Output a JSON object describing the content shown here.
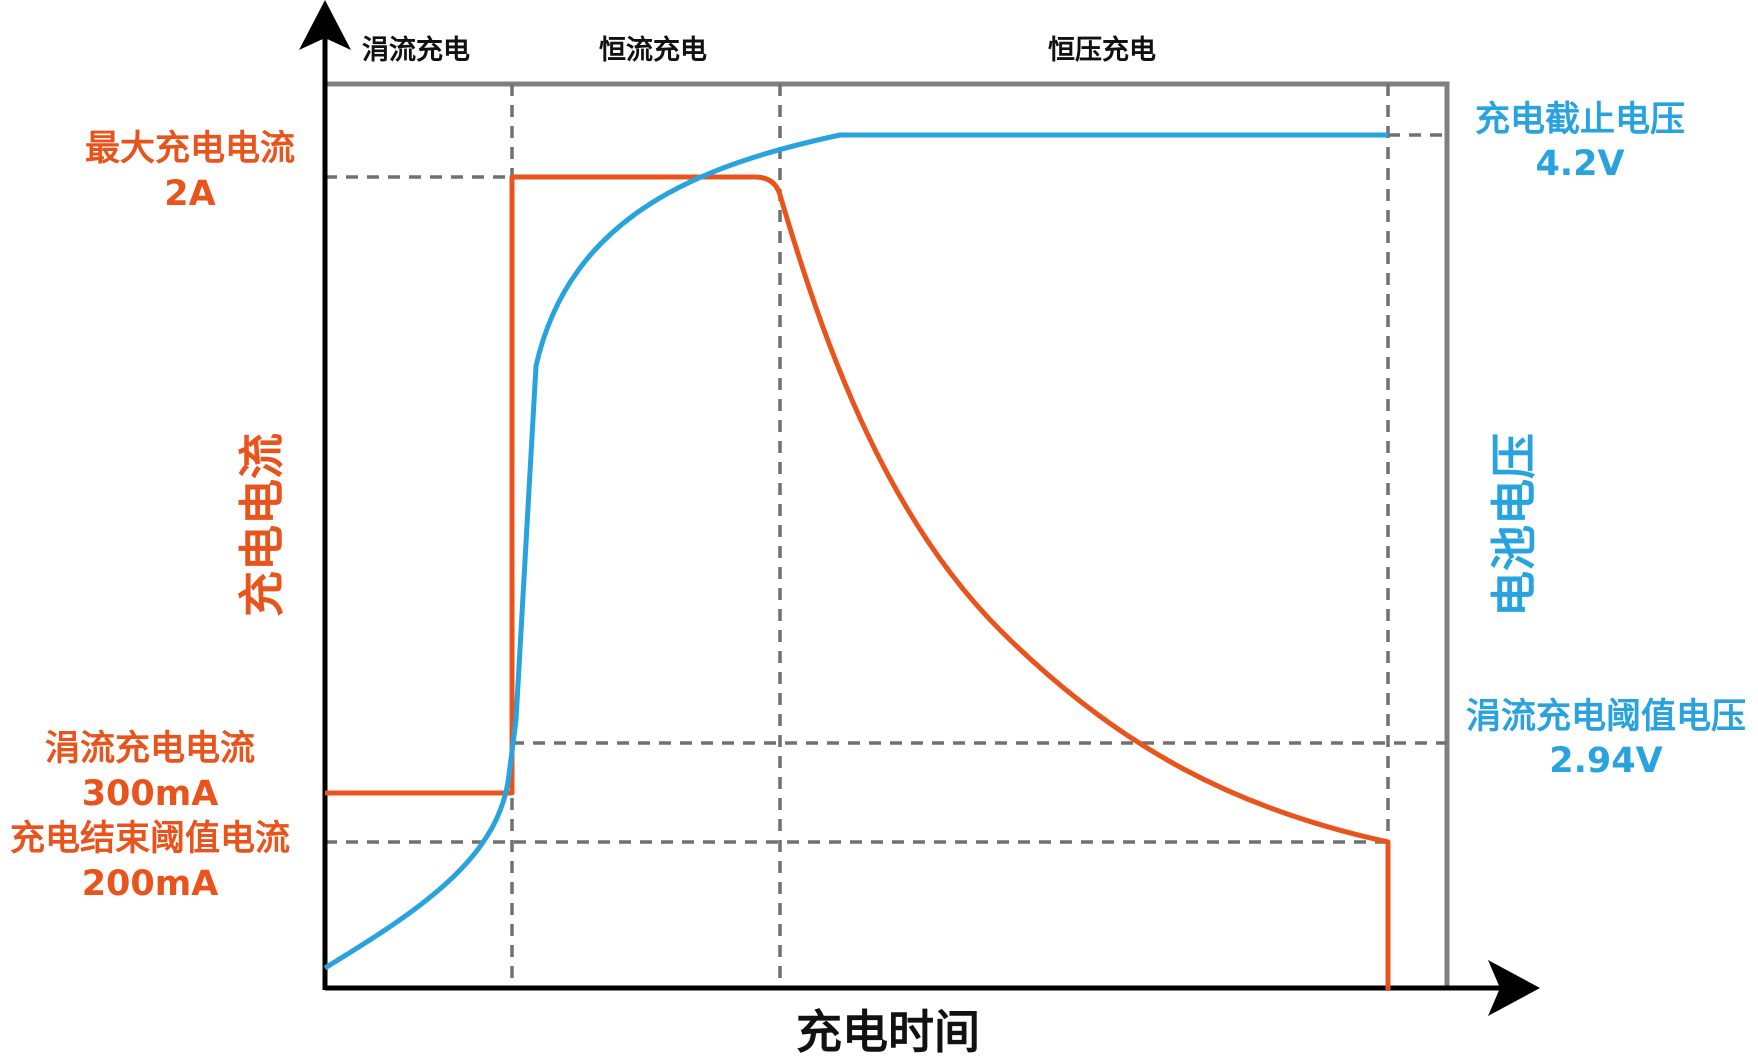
{
  "colors": {
    "current": "#e8541c",
    "voltage": "#29a3e0",
    "axis": "#000000",
    "frame": "#808080",
    "dashed": "#707070"
  },
  "phases": [
    "涓流充电",
    "恒流充电",
    "恒压充电"
  ],
  "axes": {
    "x_title": "充电时间",
    "y_left_title": "充电电流",
    "y_right_title": "电池电压"
  },
  "current_labels": {
    "max": {
      "name": "最大充电电流",
      "value": "2A"
    },
    "trickle": {
      "name": "涓流充电电流",
      "value": "300mA"
    },
    "end": {
      "name": "充电结束阈值电流",
      "value": "200mA"
    }
  },
  "voltage_labels": {
    "cutoff": {
      "name": "充电截止电压",
      "value": "4.2V"
    },
    "trickle_threshold": {
      "name": "涓流充电阈值电压",
      "value": "2.94V"
    }
  }
}
